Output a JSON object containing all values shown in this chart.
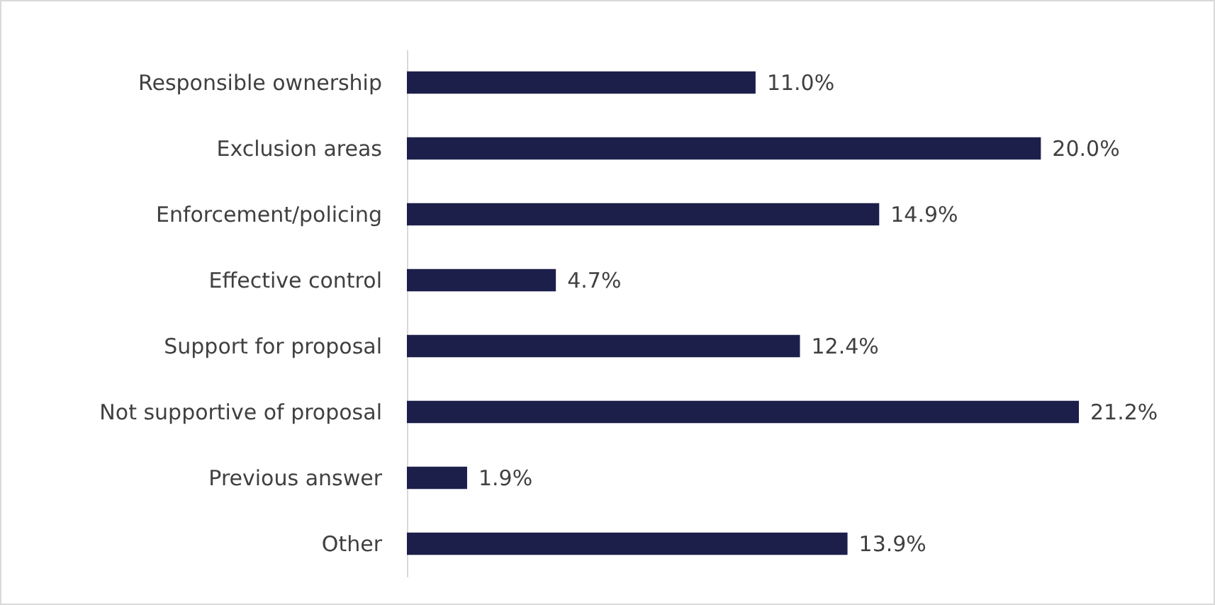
{
  "chart_data": {
    "type": "bar",
    "orientation": "horizontal",
    "categories": [
      "Responsible ownership",
      "Exclusion areas",
      "Enforcement/policing",
      "Effective control",
      "Support for proposal",
      "Not supportive of proposal",
      "Previous answer",
      "Other"
    ],
    "values": [
      11.0,
      20.0,
      14.9,
      4.7,
      12.4,
      21.2,
      1.9,
      13.9
    ],
    "value_labels": [
      "11.0%",
      "20.0%",
      "14.9%",
      "4.7%",
      "12.4%",
      "21.2%",
      "1.9%",
      "13.9%"
    ],
    "color": "#1c1f4a"
  }
}
